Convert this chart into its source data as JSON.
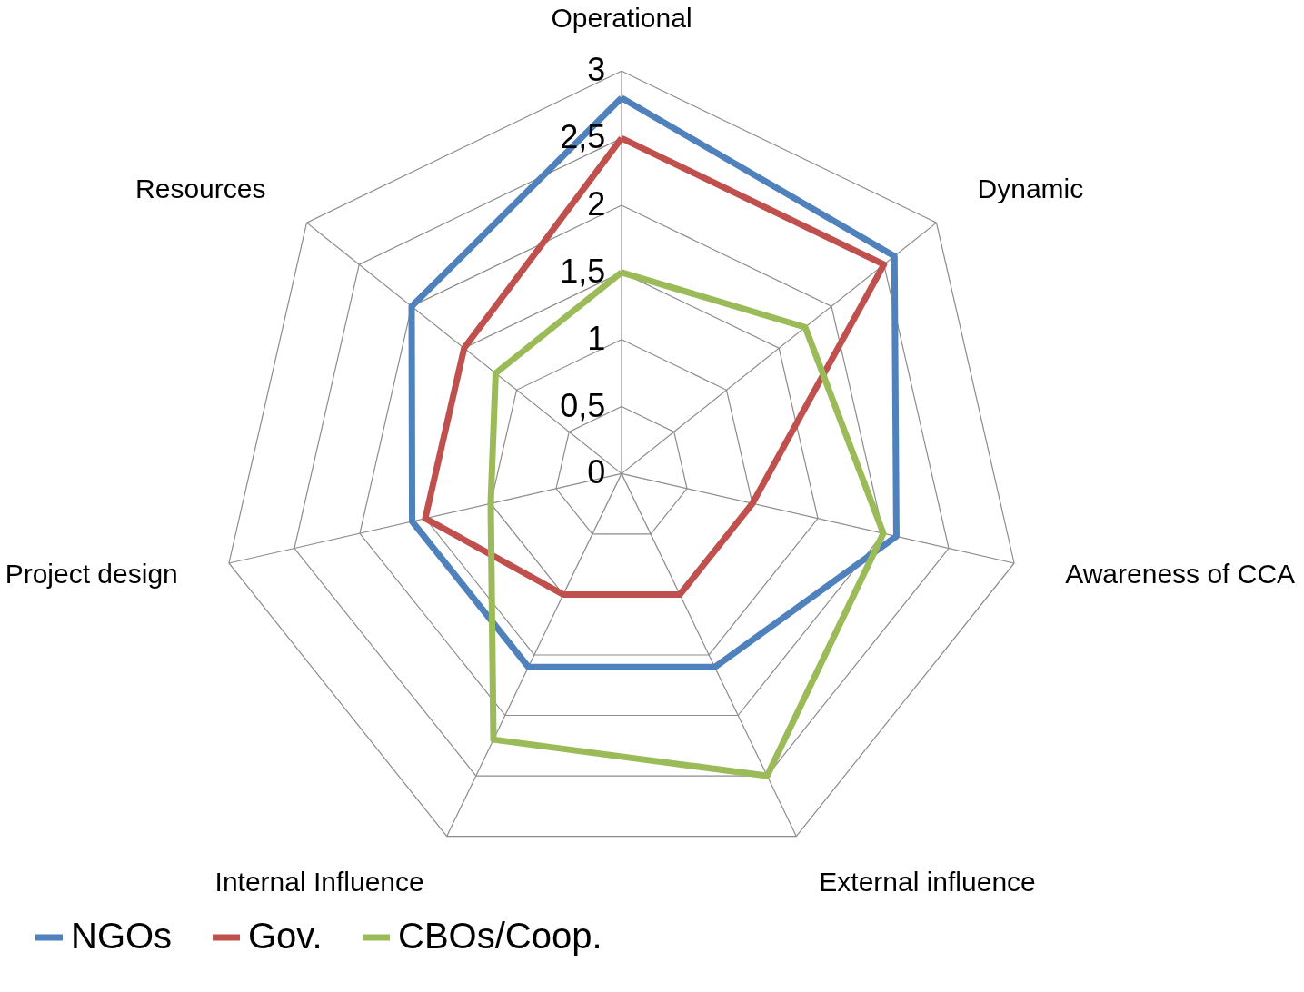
{
  "chart_data": {
    "type": "radar",
    "categories": [
      "Operational",
      "Dynamic",
      "Awareness of CCA",
      "External influence",
      "Internal Influence",
      "Project design",
      "Resources"
    ],
    "series": [
      {
        "name": "NGOs",
        "color": "#4f81bd",
        "values": [
          2.8,
          2.6,
          2.1,
          1.6,
          1.6,
          1.6,
          2.0
        ]
      },
      {
        "name": "Gov.",
        "color": "#c0504d",
        "values": [
          2.5,
          2.5,
          1.0,
          1.0,
          1.0,
          1.5,
          1.5
        ]
      },
      {
        "name": "CBOs/Coop.",
        "color": "#9bbb59",
        "values": [
          1.5,
          1.75,
          2.0,
          2.5,
          2.2,
          1.0,
          1.2
        ]
      }
    ],
    "ylim": [
      0,
      3
    ],
    "yticks": [
      0,
      {
        "value": 0.5,
        "label": "0,5"
      },
      1,
      {
        "value": 1.5,
        "label": "1,5"
      },
      2,
      {
        "value": 2.5,
        "label": "2,5"
      },
      3
    ],
    "grid": true,
    "legend": "bottom"
  }
}
